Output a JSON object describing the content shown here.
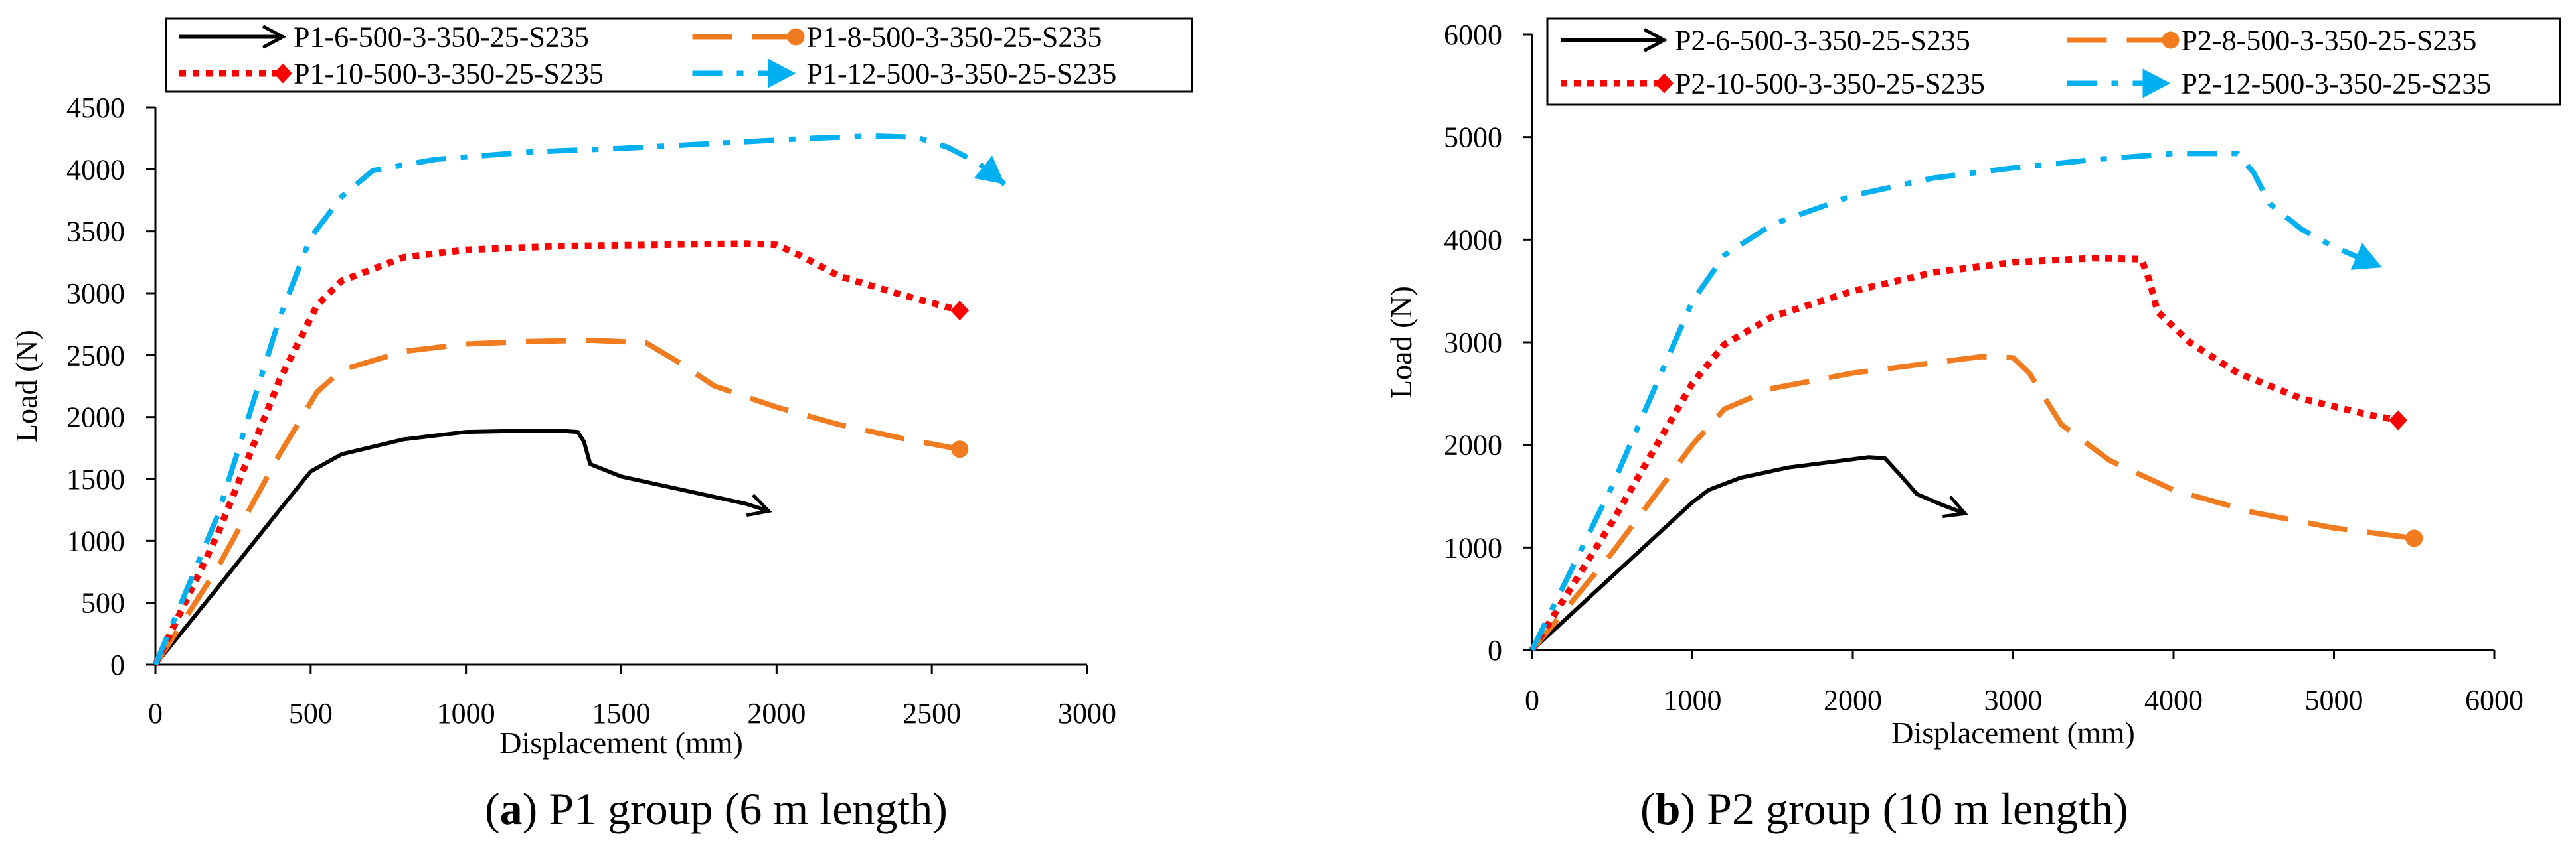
{
  "colors": {
    "black": "#000000",
    "orange": "#f07c1f",
    "red": "#ff0000",
    "cyan": "#00b0f0"
  },
  "charts": [
    {
      "caption": {
        "letter": "a",
        "text": ") P1 group (6 m length)"
      },
      "chart_data": {
        "type": "line",
        "title": "",
        "xlabel": "Displacement (mm)",
        "ylabel": "Load (N)",
        "xlim": [
          0,
          3000
        ],
        "ylim": [
          0,
          4500
        ],
        "xticks": [
          0,
          500,
          1000,
          1500,
          2000,
          2500,
          3000
        ],
        "yticks": [
          0,
          500,
          1000,
          1500,
          2000,
          2500,
          3000,
          3500,
          4000,
          4500
        ],
        "grid": false,
        "legend": "top",
        "series": [
          {
            "name": "P1-6-500-3-350-25-S235",
            "style": "solid",
            "color": "black",
            "marker": "arrow",
            "points": [
              [
                0,
                0
              ],
              [
                200,
                620
              ],
              [
                400,
                1250
              ],
              [
                500,
                1560
              ],
              [
                600,
                1700
              ],
              [
                800,
                1820
              ],
              [
                1000,
                1880
              ],
              [
                1200,
                1890
              ],
              [
                1300,
                1890
              ],
              [
                1360,
                1880
              ],
              [
                1380,
                1800
              ],
              [
                1400,
                1620
              ],
              [
                1500,
                1520
              ],
              [
                1700,
                1410
              ],
              [
                1900,
                1300
              ],
              [
                1975,
                1240
              ]
            ]
          },
          {
            "name": "P1-8-500-3-350-25-S235",
            "style": "dashed",
            "color": "orange",
            "marker": "circle",
            "points": [
              [
                0,
                0
              ],
              [
                200,
                780
              ],
              [
                400,
                1700
              ],
              [
                520,
                2200
              ],
              [
                600,
                2380
              ],
              [
                800,
                2530
              ],
              [
                1000,
                2590
              ],
              [
                1200,
                2610
              ],
              [
                1400,
                2620
              ],
              [
                1580,
                2600
              ],
              [
                1680,
                2450
              ],
              [
                1800,
                2250
              ],
              [
                2000,
                2080
              ],
              [
                2200,
                1940
              ],
              [
                2400,
                1830
              ],
              [
                2590,
                1740
              ]
            ]
          },
          {
            "name": "P1-10-500-3-350-25-S235",
            "style": "dotted",
            "color": "red",
            "marker": "diamond",
            "points": [
              [
                0,
                0
              ],
              [
                200,
                1050
              ],
              [
                400,
                2300
              ],
              [
                520,
                2900
              ],
              [
                600,
                3100
              ],
              [
                800,
                3290
              ],
              [
                1000,
                3350
              ],
              [
                1300,
                3380
              ],
              [
                1600,
                3390
              ],
              [
                1900,
                3400
              ],
              [
                2000,
                3390
              ],
              [
                2080,
                3300
              ],
              [
                2200,
                3140
              ],
              [
                2400,
                2990
              ],
              [
                2590,
                2860
              ]
            ]
          },
          {
            "name": "P1-12-500-3-350-25-S235",
            "style": "dashdot",
            "color": "cyan",
            "marker": "arrow",
            "points": [
              [
                0,
                0
              ],
              [
                200,
                1200
              ],
              [
                400,
                2800
              ],
              [
                500,
                3450
              ],
              [
                600,
                3780
              ],
              [
                700,
                3990
              ],
              [
                900,
                4080
              ],
              [
                1200,
                4140
              ],
              [
                1500,
                4170
              ],
              [
                1800,
                4210
              ],
              [
                2100,
                4250
              ],
              [
                2300,
                4270
              ],
              [
                2450,
                4260
              ],
              [
                2550,
                4180
              ],
              [
                2650,
                4050
              ],
              [
                2735,
                3880
              ]
            ]
          }
        ]
      }
    },
    {
      "caption": {
        "letter": "b",
        "text": ") P2 group (10 m length)"
      },
      "chart_data": {
        "type": "line",
        "title": "",
        "xlabel": "Displacement (mm)",
        "ylabel": "Load (N)",
        "xlim": [
          0,
          6000
        ],
        "ylim": [
          0,
          6000
        ],
        "xticks": [
          0,
          1000,
          2000,
          3000,
          4000,
          5000,
          6000
        ],
        "yticks": [
          0,
          1000,
          2000,
          3000,
          4000,
          5000,
          6000
        ],
        "grid": false,
        "legend": "top",
        "series": [
          {
            "name": "P2-6-500-3-350-25-S235",
            "style": "solid",
            "color": "black",
            "marker": "arrow",
            "points": [
              [
                0,
                0
              ],
              [
                500,
                720
              ],
              [
                1000,
                1440
              ],
              [
                1100,
                1560
              ],
              [
                1300,
                1680
              ],
              [
                1600,
                1780
              ],
              [
                2000,
                1860
              ],
              [
                2100,
                1880
              ],
              [
                2200,
                1870
              ],
              [
                2300,
                1700
              ],
              [
                2400,
                1520
              ],
              [
                2550,
                1420
              ],
              [
                2700,
                1330
              ]
            ]
          },
          {
            "name": "P2-8-500-3-350-25-S235",
            "style": "dashed",
            "color": "orange",
            "marker": "circle",
            "points": [
              [
                0,
                0
              ],
              [
                500,
                950
              ],
              [
                1000,
                2000
              ],
              [
                1200,
                2350
              ],
              [
                1500,
                2550
              ],
              [
                2000,
                2700
              ],
              [
                2500,
                2800
              ],
              [
                2800,
                2860
              ],
              [
                3000,
                2850
              ],
              [
                3100,
                2700
              ],
              [
                3300,
                2200
              ],
              [
                3600,
                1850
              ],
              [
                4000,
                1560
              ],
              [
                4500,
                1340
              ],
              [
                5000,
                1190
              ],
              [
                5500,
                1090
              ]
            ]
          },
          {
            "name": "P2-10-500-3-350-25-S235",
            "style": "dotted",
            "color": "red",
            "marker": "diamond",
            "points": [
              [
                0,
                0
              ],
              [
                500,
                1250
              ],
              [
                1000,
                2600
              ],
              [
                1200,
                2980
              ],
              [
                1500,
                3250
              ],
              [
                2000,
                3500
              ],
              [
                2500,
                3680
              ],
              [
                3000,
                3780
              ],
              [
                3500,
                3820
              ],
              [
                3800,
                3810
              ],
              [
                3850,
                3600
              ],
              [
                3900,
                3300
              ],
              [
                4100,
                3000
              ],
              [
                4400,
                2700
              ],
              [
                4800,
                2450
              ],
              [
                5200,
                2300
              ],
              [
                5400,
                2240
              ]
            ]
          },
          {
            "name": "P2-12-500-3-350-25-S235",
            "style": "dashdot",
            "color": "cyan",
            "marker": "arrow",
            "points": [
              [
                0,
                0
              ],
              [
                500,
                1600
              ],
              [
                1000,
                3400
              ],
              [
                1200,
                3850
              ],
              [
                1500,
                4150
              ],
              [
                2000,
                4430
              ],
              [
                2500,
                4600
              ],
              [
                3000,
                4700
              ],
              [
                3500,
                4780
              ],
              [
                4000,
                4840
              ],
              [
                4400,
                4840
              ],
              [
                4500,
                4650
              ],
              [
                4600,
                4350
              ],
              [
                4800,
                4100
              ],
              [
                5000,
                3930
              ],
              [
                5300,
                3730
              ]
            ]
          }
        ]
      }
    }
  ]
}
